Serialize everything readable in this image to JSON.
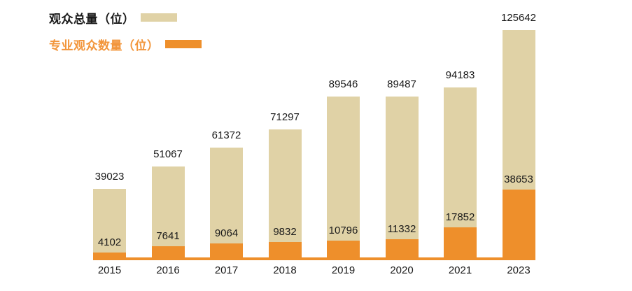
{
  "legend": {
    "total_label": "观众总量（位）",
    "professional_label": "专业观众数量（位）"
  },
  "colors": {
    "total_bar": "#E0D2A6",
    "professional_bar": "#EE8F2B",
    "legend_professional_text": "#F2953A",
    "label_text": "#1A1A1A",
    "background": "#FFFFFF"
  },
  "chart_data": {
    "type": "bar",
    "subtype": "overlay-stacked",
    "categories": [
      "2015",
      "2016",
      "2017",
      "2018",
      "2019",
      "2020",
      "2021",
      "2023"
    ],
    "series": [
      {
        "name": "观众总量（位）",
        "color": "#E0D2A6",
        "values": [
          39023,
          51067,
          61372,
          71297,
          89546,
          89487,
          94183,
          125642
        ]
      },
      {
        "name": "专业观众数量（位）",
        "color": "#EE8F2B",
        "values": [
          4102,
          7641,
          9064,
          9832,
          10796,
          11332,
          17852,
          38653
        ]
      }
    ],
    "ylim": [
      0,
      125642
    ],
    "grid": false,
    "axes_visible": false,
    "legend_position": "top-left",
    "value_labels": true
  }
}
